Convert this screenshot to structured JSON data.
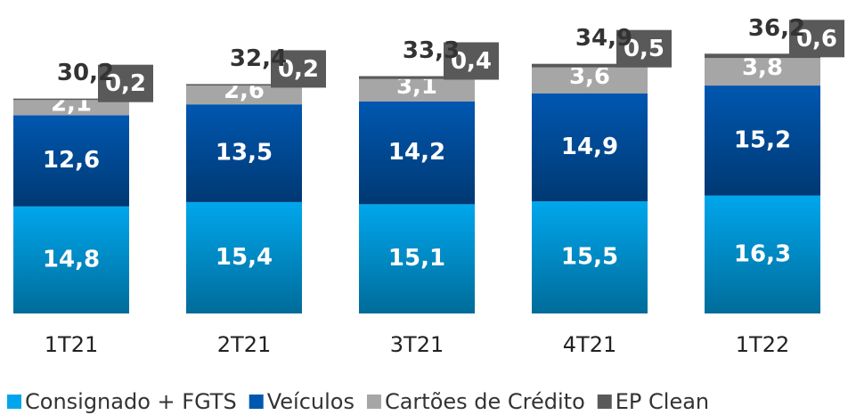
{
  "chart_data": {
    "type": "stacked_bar",
    "categories": [
      "1T21",
      "2T21",
      "3T21",
      "4T21",
      "1T22"
    ],
    "series": [
      {
        "name": "Consignado + FGTS",
        "color": "#00a6ec",
        "values": [
          14.8,
          15.4,
          15.1,
          15.5,
          16.3
        ],
        "value_labels": [
          "14,8",
          "15,4",
          "15,1",
          "15,5",
          "16,3"
        ]
      },
      {
        "name": "Veículos",
        "color": "#0057b0",
        "values": [
          12.6,
          13.5,
          14.2,
          14.9,
          15.2
        ],
        "value_labels": [
          "12,6",
          "13,5",
          "14,2",
          "14,9",
          "15,2"
        ]
      },
      {
        "name": "Cartões de Crédito",
        "color": "#a6a6a6",
        "values": [
          2.1,
          2.6,
          3.1,
          3.6,
          3.8
        ],
        "value_labels": [
          "2,1",
          "2,6",
          "3,1",
          "3,6",
          "3,8"
        ]
      },
      {
        "name": "EP Clean",
        "color": "#595959",
        "values": [
          0.2,
          0.2,
          0.4,
          0.5,
          0.6
        ],
        "value_labels": [
          "0,2",
          "0,2",
          "0,4",
          "0,5",
          "0,6"
        ]
      }
    ],
    "totals": {
      "values": [
        30.2,
        32.4,
        33.3,
        34.9,
        36.2
      ],
      "value_labels": [
        "30,2",
        "32,4",
        "33,3",
        "34,9",
        "36,2"
      ]
    },
    "ylim": [
      0,
      40
    ]
  }
}
